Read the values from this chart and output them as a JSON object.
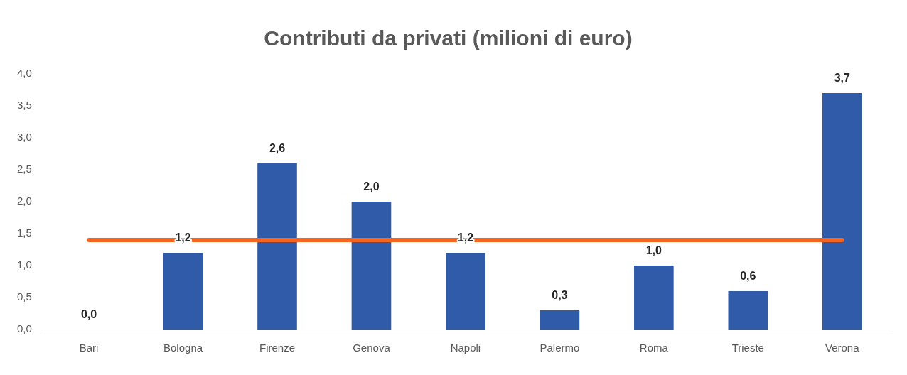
{
  "chart_data": {
    "type": "bar",
    "title": "Contributi da privati (milioni di euro)",
    "categories": [
      "Bari",
      "Bologna",
      "Firenze",
      "Genova",
      "Napoli",
      "Palermo",
      "Roma",
      "Trieste",
      "Verona"
    ],
    "values": [
      0.0,
      1.2,
      2.6,
      2.0,
      1.2,
      0.3,
      1.0,
      0.6,
      3.7
    ],
    "value_labels": [
      "0,0",
      "1,2",
      "2,6",
      "2,0",
      "1,2",
      "0,3",
      "1,0",
      "0,6",
      "3,7"
    ],
    "color": "#2f5ba8",
    "ylim": [
      0,
      4
    ],
    "yticks": [
      {
        "value": 0,
        "label": "0,0"
      },
      {
        "value": 0.5,
        "label": "0,5"
      },
      {
        "value": 1,
        "label": "1,0"
      },
      {
        "value": 1.5,
        "label": "1,5"
      },
      {
        "value": 2,
        "label": "2,0"
      },
      {
        "value": 2.5,
        "label": "2,5"
      },
      {
        "value": 3,
        "label": "3,0"
      },
      {
        "value": 3.5,
        "label": "3,5"
      },
      {
        "value": 4,
        "label": "4,0"
      }
    ],
    "ref_lines": [
      {
        "axis": "y",
        "value": 1.4,
        "label": null,
        "color": "#f26522"
      }
    ],
    "grid": false,
    "legend": false
  }
}
